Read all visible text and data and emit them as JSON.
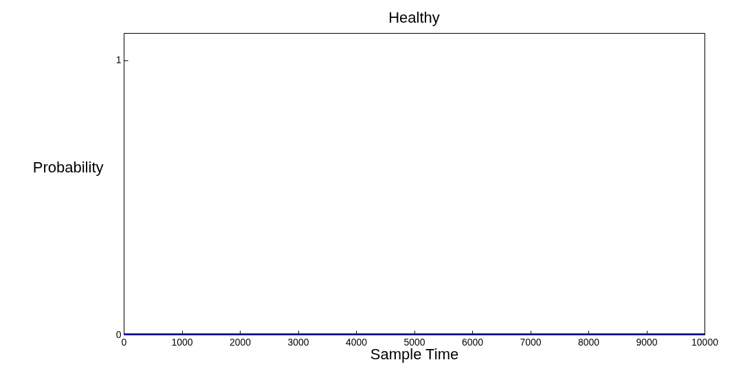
{
  "chart_data": {
    "type": "line",
    "title": "Healthy",
    "xlabel": "Sample Time",
    "ylabel": "Probability",
    "x": [
      0,
      10000
    ],
    "series": [
      {
        "color": "#0000ff",
        "values": [
          0,
          0
        ]
      }
    ],
    "xlim": [
      0,
      10000
    ],
    "xticks": [
      0,
      1000,
      2000,
      3000,
      4000,
      5000,
      6000,
      7000,
      8000,
      9000,
      10000
    ],
    "ylim": [
      0,
      1.1
    ],
    "yticks": [
      0,
      1
    ],
    "grid": false
  }
}
